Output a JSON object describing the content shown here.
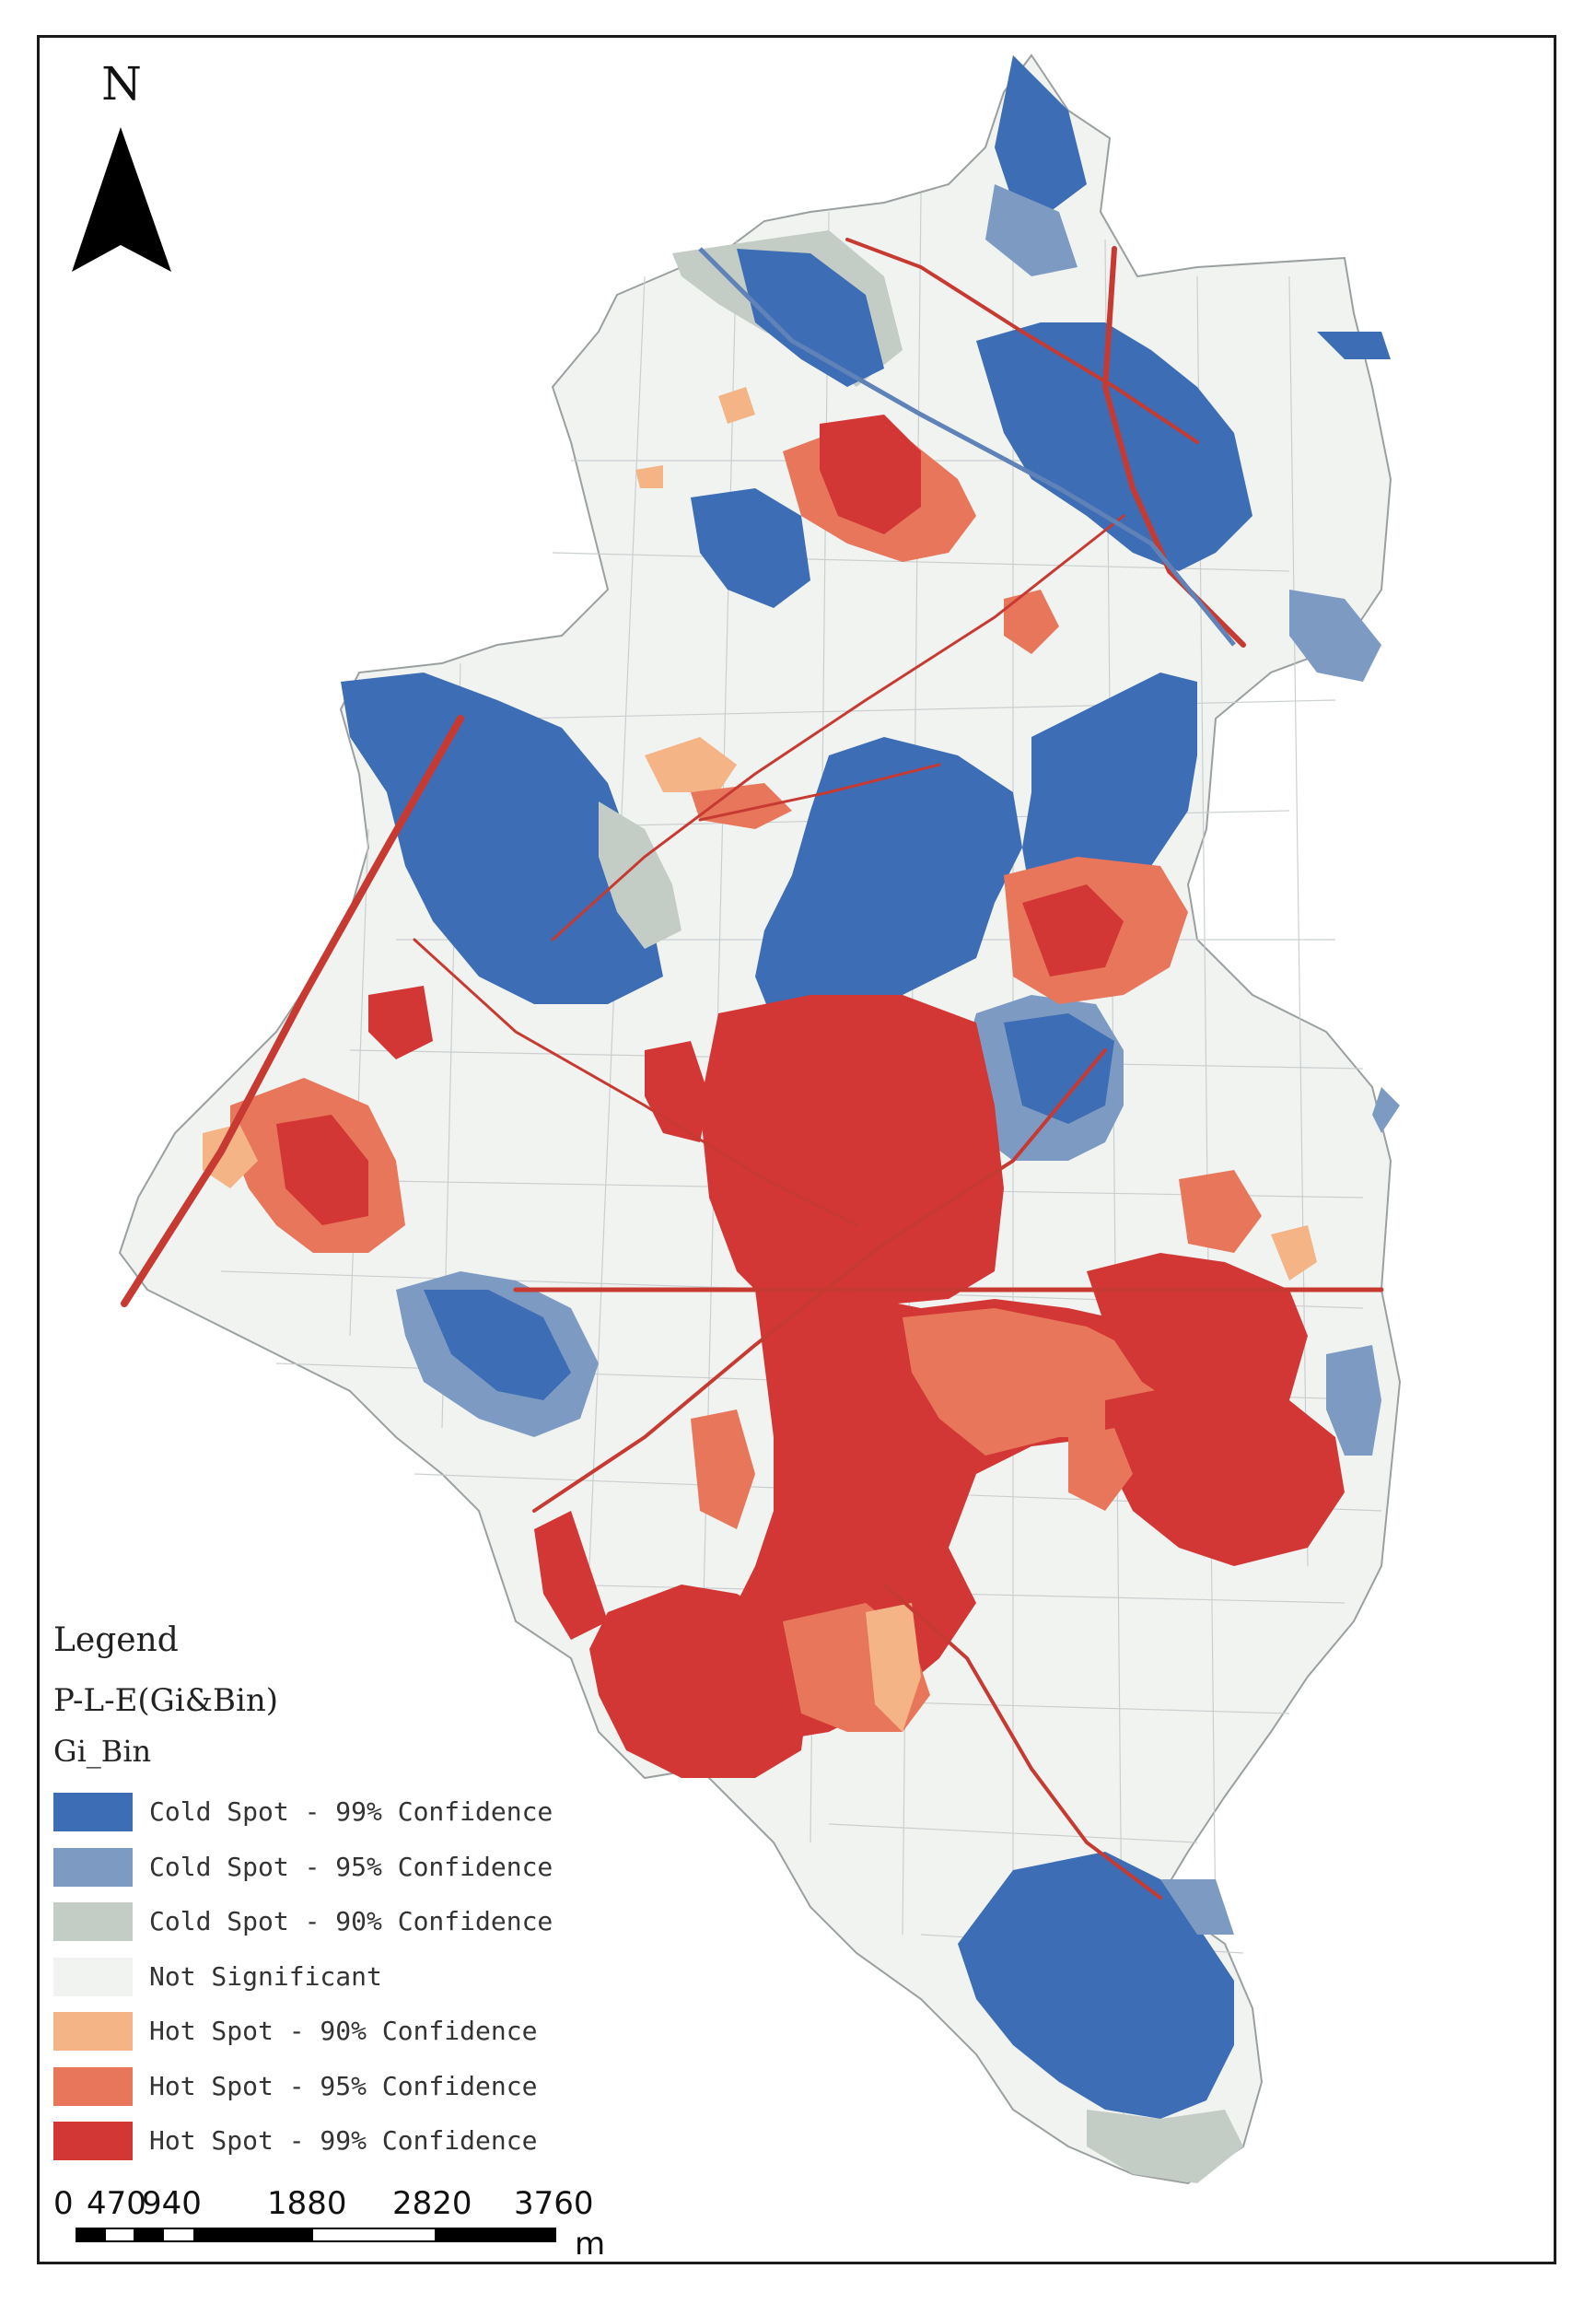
{
  "north": {
    "label": "N"
  },
  "legend": {
    "title": "Legend",
    "layer": "P-L-E(Gi&Bin)",
    "field": "Gi_Bin",
    "items": [
      {
        "label": "Cold Spot - 99% Confidence",
        "color": "#3d6db4"
      },
      {
        "label": "Cold Spot - 95% Confidence",
        "color": "#7d9bc2"
      },
      {
        "label": "Cold Spot - 90% Confidence",
        "color": "#c3cdc6"
      },
      {
        "label": "Not Significant",
        "color": "#f1f3f1"
      },
      {
        "label": "Hot Spot - 90% Confidence",
        "color": "#f4b486"
      },
      {
        "label": "Hot Spot - 95% Confidence",
        "color": "#e8765a"
      },
      {
        "label": "Hot Spot - 99% Confidence",
        "color": "#d23735"
      }
    ]
  },
  "scale_bar": {
    "ticks": [
      "0",
      "470",
      "940",
      "1880",
      "2820",
      "3760"
    ],
    "unit": "m"
  }
}
